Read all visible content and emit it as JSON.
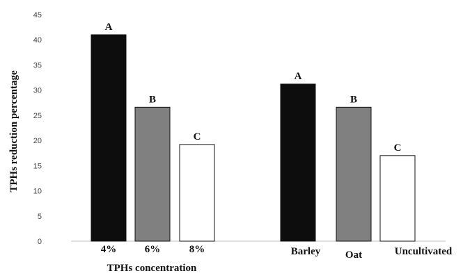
{
  "chart_data": {
    "type": "bar",
    "ylabel": "TPHs reduction percentage",
    "xlabel": "TPHs concentration",
    "ylim": [
      0,
      45
    ],
    "yticks": [
      0,
      5,
      10,
      15,
      20,
      25,
      30,
      35,
      40,
      45
    ],
    "grid": false,
    "bars": [
      {
        "category": "4%",
        "value": 41.0,
        "letter": "A",
        "fill": "#0d0d0d"
      },
      {
        "category": "6%",
        "value": 26.6,
        "letter": "B",
        "fill": "#808080"
      },
      {
        "category": "8%",
        "value": 19.2,
        "letter": "C",
        "fill": "#ffffff"
      },
      {
        "category": "Barley",
        "value": 31.2,
        "letter": "A",
        "fill": "#0d0d0d"
      },
      {
        "category": "Oat",
        "value": 26.6,
        "letter": "B",
        "fill": "#808080"
      },
      {
        "category": "Uncultivated",
        "value": 17.0,
        "letter": "C",
        "fill": "#ffffff"
      }
    ]
  }
}
